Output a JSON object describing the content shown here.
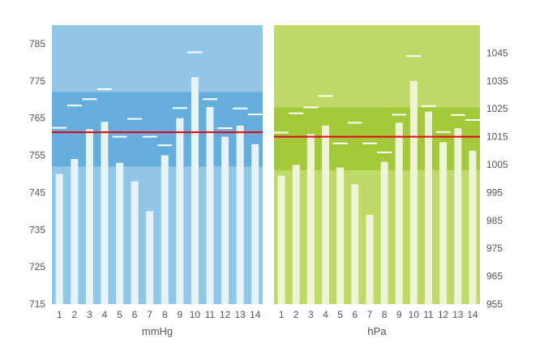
{
  "chart_data": [
    {
      "type": "bar",
      "xlabel": "mmHg",
      "categories": [
        "1",
        "2",
        "3",
        "4",
        "5",
        "6",
        "7",
        "8",
        "9",
        "10",
        "11",
        "12",
        "13",
        "14"
      ],
      "values": [
        750,
        754,
        762,
        764,
        753,
        748,
        740,
        755,
        765,
        776,
        768,
        760,
        763,
        758
      ],
      "markers": [
        762.4,
        768.4,
        770.1,
        772.8,
        760.0,
        764.8,
        760.0,
        757.7,
        767.7,
        782.7,
        770.1,
        762.3,
        767.6,
        766.0
      ],
      "reference_line": 761.2,
      "band": [
        752,
        772
      ],
      "ylim": [
        715,
        790
      ],
      "yticks": [
        715,
        725,
        735,
        745,
        755,
        765,
        775,
        785
      ],
      "colors": {
        "background": "#92c6e7",
        "band": "#65aedb",
        "bar": "#e6f3f9",
        "marker": "#ffffff",
        "reference": "#e0001a"
      }
    },
    {
      "type": "bar",
      "xlabel": "hPa",
      "categories": [
        "1",
        "2",
        "3",
        "4",
        "5",
        "6",
        "7",
        "8",
        "9",
        "10",
        "11",
        "12",
        "13",
        "14"
      ],
      "values": [
        1001,
        1005,
        1016,
        1019,
        1004,
        998,
        987,
        1006,
        1020,
        1035,
        1024,
        1013,
        1018,
        1010
      ],
      "markers": [
        1016.5,
        1023.4,
        1025.5,
        1029.6,
        1012.6,
        1020.0,
        1012.6,
        1009.4,
        1022.9,
        1043.9,
        1026.0,
        1016.7,
        1022.8,
        1021.0
      ],
      "reference_line": 1015.0,
      "band": [
        1003,
        1025.5
      ],
      "ylim": [
        955,
        1055
      ],
      "yticks": [
        955,
        965,
        975,
        985,
        995,
        1005,
        1015,
        1025,
        1035,
        1045
      ],
      "colors": {
        "background": "#bfd968",
        "band": "#a3c93a",
        "bar": "#eef5d6",
        "marker": "#ffffff",
        "reference": "#e0001a"
      }
    }
  ]
}
